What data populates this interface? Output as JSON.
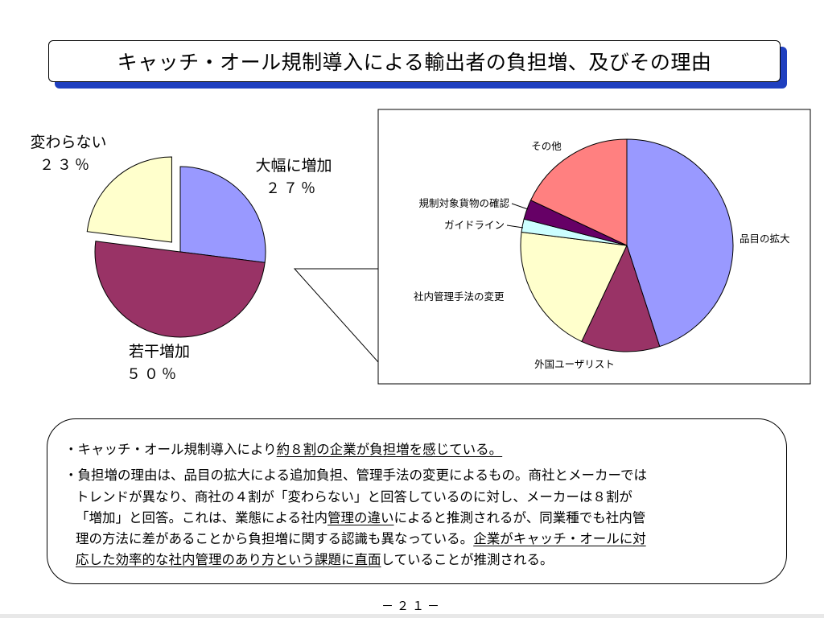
{
  "title": "キャッチ・オール規制導入による輸出者の負担増、及びその理由",
  "chart_data": [
    {
      "type": "pie",
      "title": "",
      "categories": [
        "大幅に増加",
        "若干増加",
        "変わらない"
      ],
      "values": [
        27,
        50,
        23
      ],
      "value_labels": [
        "２７％",
        "５０％",
        "２３％"
      ],
      "colors": [
        "#9999ff",
        "#993366",
        "#ffffcc"
      ],
      "exploded": [
        "変わらない"
      ]
    },
    {
      "type": "pie",
      "title": "",
      "categories": [
        "品目の拡大",
        "外国ユーザリスト",
        "社内管理手法の変更",
        "ガイドライン",
        "規制対象貨物の確認",
        "その他"
      ],
      "values": [
        45,
        12,
        20,
        2,
        3,
        18
      ],
      "colors": [
        "#9999ff",
        "#993366",
        "#ffffcc",
        "#ccffff",
        "#660066",
        "#ff8080"
      ]
    }
  ],
  "notes": {
    "line1": {
      "a": "・キャッチ・オール規制導入により",
      "b": "約８割の企業が負担増を感じている。"
    },
    "line2": "・負担増の理由は、品目の拡大による追加負担、管理手法の変更によるもの。商社とメーカーでは",
    "line3": "トレンドが異なり、商社の４割が「変わらない」と回答しているのに対し、メーカーは８割が",
    "line4": {
      "a": "「増加」と回答。これは、業態による社内",
      "b": "管理の違い",
      "c": "によると推測されるが、同業種でも社内管"
    },
    "line5": {
      "a": "理の方法に差があることから負担増に関する認識も異なっている。",
      "b": "企業がキャッチ・オールに対"
    },
    "line6": {
      "a": "応した効率的な社内管理のあり方という課題に直面",
      "b": "していることが推測される。"
    }
  },
  "page_number": "－２１－"
}
